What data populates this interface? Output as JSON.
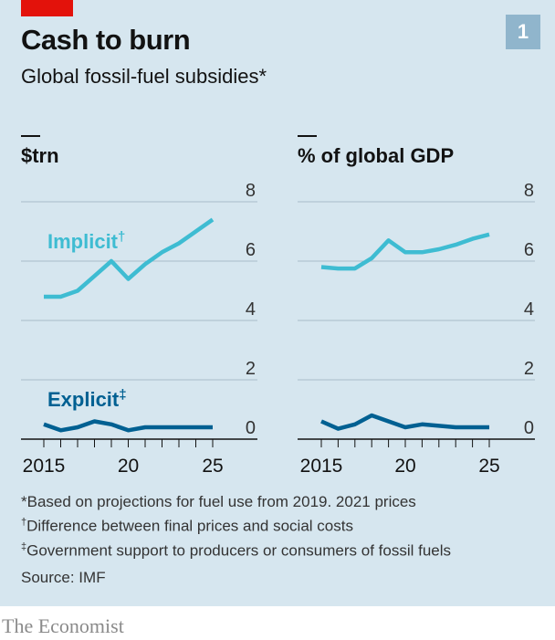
{
  "header": {
    "title": "Cash to burn",
    "subtitle": "Global fossil-fuel subsidies*",
    "badge": "1"
  },
  "footnotes": {
    "f1": "*Based on projections for fuel use from 2019. 2021 prices",
    "f2_mark": "†",
    "f2": "Difference between final prices and social costs",
    "f3_mark": "‡",
    "f3": "Government support to producers or consumers of fossil fuels",
    "source": "Source: IMF"
  },
  "brand": "The Economist",
  "colors": {
    "background": "#d6e6ef",
    "implicit": "#3ebcd2",
    "explicit": "#006092",
    "brand_red": "#e3120b",
    "grid": "#a8bcc8"
  },
  "chart_data": [
    {
      "type": "line",
      "unit_label": "$trn",
      "x": [
        2015,
        2016,
        2017,
        2018,
        2019,
        2020,
        2021,
        2022,
        2023,
        2024,
        2025
      ],
      "x_tick_values": [
        2015,
        2020,
        2025
      ],
      "x_tick_labels": [
        "2015",
        "20",
        "25"
      ],
      "y_ticks": [
        0,
        2,
        4,
        6,
        8
      ],
      "ylim": [
        0,
        8
      ],
      "series": [
        {
          "name": "Implicit",
          "mark": "†",
          "color": "#3ebcd2",
          "values": [
            4.8,
            4.8,
            5.0,
            5.5,
            6.0,
            5.4,
            5.9,
            6.3,
            6.6,
            7.0,
            7.4
          ]
        },
        {
          "name": "Explicit",
          "mark": "‡",
          "color": "#006092",
          "values": [
            0.5,
            0.3,
            0.4,
            0.6,
            0.5,
            0.3,
            0.4,
            0.4,
            0.4,
            0.4,
            0.4
          ]
        }
      ]
    },
    {
      "type": "line",
      "unit_label": "% of global GDP",
      "x": [
        2015,
        2016,
        2017,
        2018,
        2019,
        2020,
        2021,
        2022,
        2023,
        2024,
        2025
      ],
      "x_tick_values": [
        2015,
        2020,
        2025
      ],
      "x_tick_labels": [
        "2015",
        "20",
        "25"
      ],
      "y_ticks": [
        0,
        2,
        4,
        6,
        8
      ],
      "ylim": [
        0,
        8
      ],
      "series": [
        {
          "name": "Implicit",
          "color": "#3ebcd2",
          "values": [
            5.8,
            5.75,
            5.75,
            6.1,
            6.7,
            6.3,
            6.3,
            6.4,
            6.55,
            6.75,
            6.9
          ]
        },
        {
          "name": "Explicit",
          "color": "#006092",
          "values": [
            0.6,
            0.35,
            0.5,
            0.8,
            0.6,
            0.4,
            0.5,
            0.45,
            0.4,
            0.4,
            0.4
          ]
        }
      ]
    }
  ]
}
